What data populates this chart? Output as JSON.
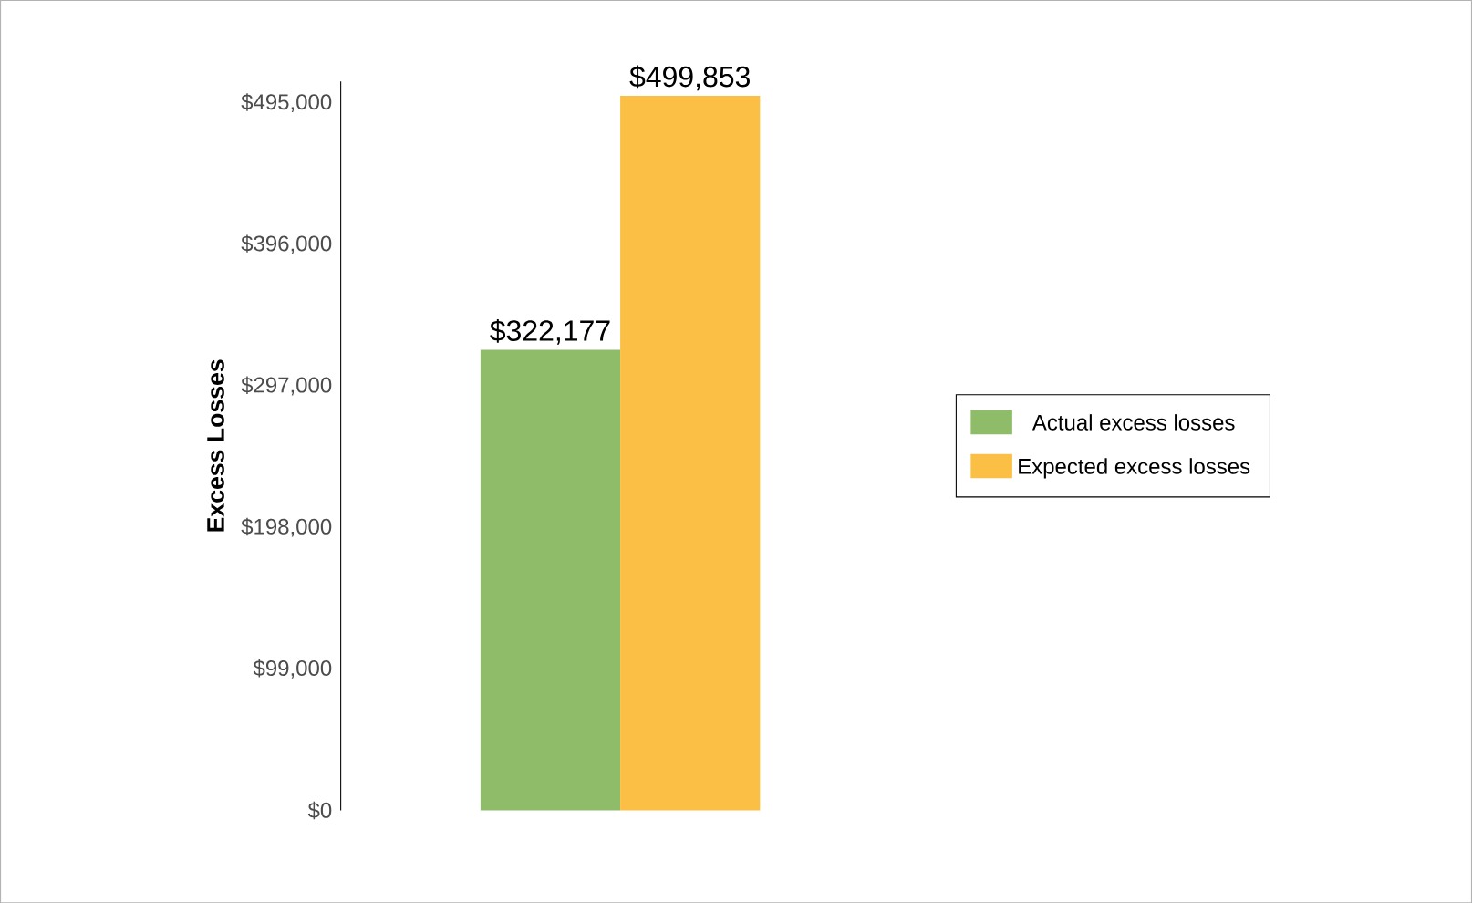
{
  "chart_data": {
    "type": "bar",
    "ylabel": "Excess Losses",
    "categories": [
      null
    ],
    "series": [
      {
        "name": "Actual excess losses",
        "color": "#8fbc68",
        "values": [
          322177
        ],
        "value_labels": [
          "$322,177"
        ]
      },
      {
        "name": "Expected excess losses",
        "color": "#fbbf45",
        "values": [
          499853
        ],
        "value_labels": [
          "$499,853"
        ]
      }
    ],
    "ylim": [
      0,
      510000
    ],
    "yticks": [
      {
        "value": 0,
        "label": "$0"
      },
      {
        "value": 99000,
        "label": "$99,000"
      },
      {
        "value": 198000,
        "label": "$198,000"
      },
      {
        "value": 297000,
        "label": "$297,000"
      },
      {
        "value": 396000,
        "label": "$396,000"
      },
      {
        "value": 495000,
        "label": "$495,000"
      }
    ],
    "legend": "right",
    "grid": false
  }
}
